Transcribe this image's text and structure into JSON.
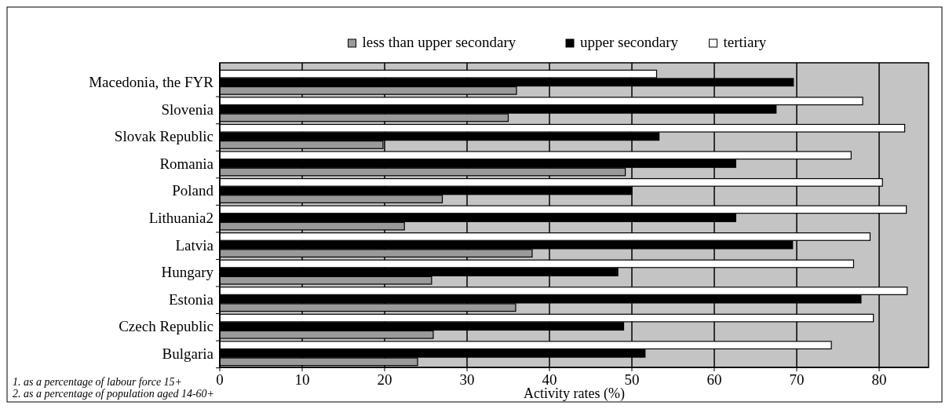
{
  "chart_data": {
    "type": "bar",
    "orientation": "horizontal",
    "xlabel": "Activity rates (%)",
    "categories": [
      "Macedonia, the FYR",
      "Slovenia",
      "Slovak Republic",
      "Romania",
      "Poland",
      "Lithuania2",
      "Latvia",
      "Hungary",
      "Estonia",
      "Czech Republic",
      "Bulgaria"
    ],
    "series": [
      {
        "name": "less than upper secondary",
        "color": "#9a9a9a",
        "values": [
          36,
          35,
          19.8,
          49.2,
          27,
          22.4,
          37.9,
          25.7,
          35.9,
          25.9,
          24
        ]
      },
      {
        "name": "upper secondary",
        "color": "#000000",
        "values": [
          69.6,
          67.5,
          53.3,
          62.6,
          50,
          62.6,
          69.5,
          48.3,
          77.8,
          49,
          51.6
        ]
      },
      {
        "name": "tertiary",
        "color": "#ffffff",
        "values": [
          53,
          78,
          83.1,
          76.6,
          80.4,
          83.3,
          78.9,
          76.9,
          83.4,
          79.3,
          74.2
        ]
      }
    ],
    "xlim": [
      0,
      86
    ],
    "xticks": [
      0,
      10,
      20,
      30,
      40,
      50,
      60,
      70,
      80
    ],
    "grid": "x",
    "legend": "top",
    "annotations": [
      "1. as a percentage of labour force 15+",
      "2. as a percentage of population aged 14-60+"
    ]
  }
}
